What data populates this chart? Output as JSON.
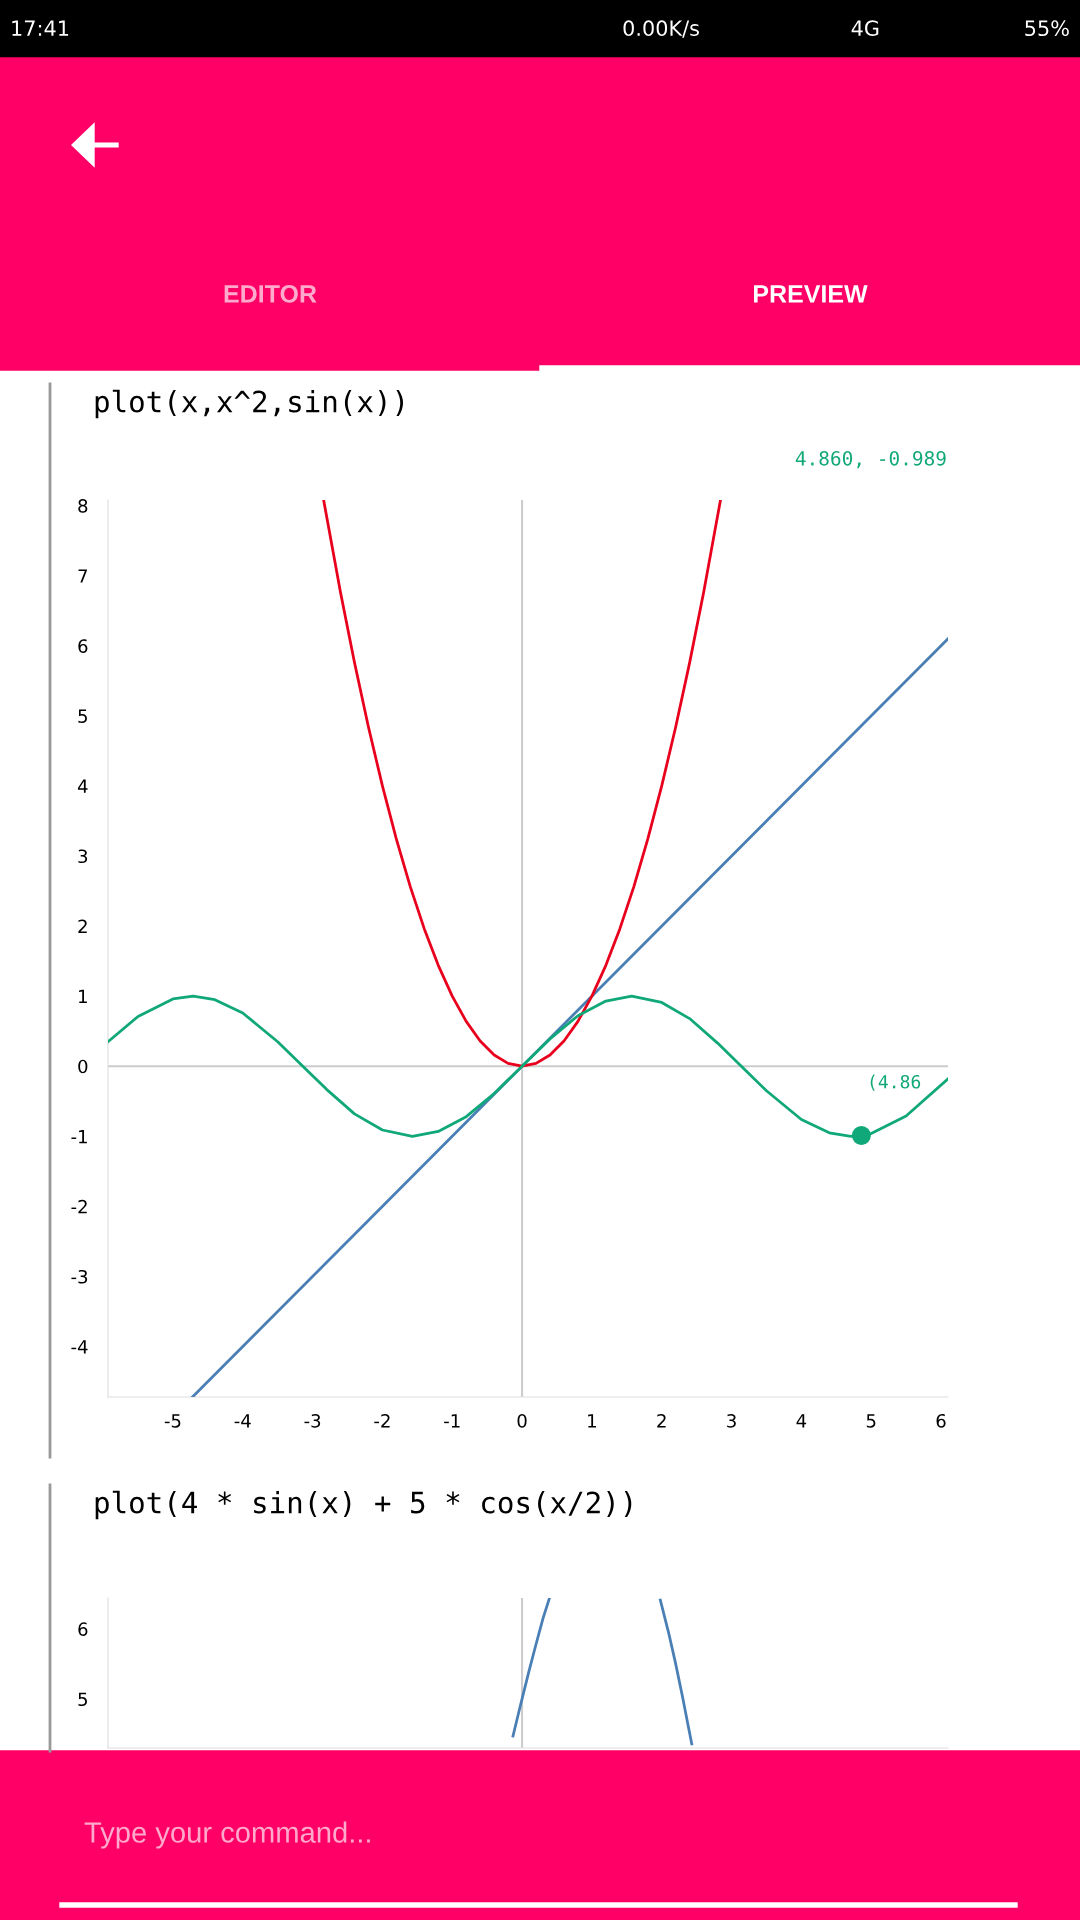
{
  "chart_data": [
    {
      "type": "line",
      "title": "plot(x,x^2,sin(x))",
      "xlim": [
        -5.93,
        6.1
      ],
      "ylim": [
        -4.72,
        8.08
      ],
      "xticks": [
        -5,
        -4,
        -3,
        -2,
        -1,
        0,
        1,
        2,
        3,
        4,
        5,
        6
      ],
      "yticks": [
        -4,
        -3,
        -2,
        -1,
        0,
        1,
        2,
        3,
        4,
        5,
        6,
        7,
        8
      ],
      "grid": false,
      "ref_lines": [
        {
          "axis": "x",
          "value": 0,
          "color": "#cccccc"
        },
        {
          "axis": "y",
          "value": 0,
          "color": "#cccccc"
        }
      ],
      "annotations": [
        "4.860, -0.989",
        {
          "text": "(4.86",
          "x": 4.86,
          "y": -0.989
        }
      ],
      "series": [
        {
          "color": "#4a7fb5",
          "x": [
            -4.72,
            6.1
          ],
          "values": [
            -4.72,
            6.1
          ]
        },
        {
          "color": "#e8001c",
          "x": [
            -2.84,
            -2.6,
            -2.4,
            -2.2,
            -2.0,
            -1.8,
            -1.6,
            -1.4,
            -1.2,
            -1.0,
            -0.8,
            -0.6,
            -0.4,
            -0.2,
            0,
            0.2,
            0.4,
            0.6,
            0.8,
            1.0,
            1.2,
            1.4,
            1.6,
            1.8,
            2.0,
            2.2,
            2.4,
            2.6,
            2.84
          ],
          "values": [
            8.07,
            6.76,
            5.76,
            4.84,
            4.0,
            3.24,
            2.56,
            1.96,
            1.44,
            1.0,
            0.64,
            0.36,
            0.16,
            0.04,
            0,
            0.04,
            0.16,
            0.36,
            0.64,
            1.0,
            1.44,
            1.96,
            2.56,
            3.24,
            4.0,
            4.84,
            5.76,
            6.76,
            8.07
          ]
        },
        {
          "color": "#10a878",
          "x": [
            -5.93,
            -5.5,
            -5.0,
            -4.71,
            -4.4,
            -4.0,
            -3.5,
            -3.14,
            -2.8,
            -2.4,
            -2.0,
            -1.57,
            -1.2,
            -0.8,
            -0.4,
            0,
            0.4,
            0.8,
            1.2,
            1.57,
            2.0,
            2.4,
            2.8,
            3.14,
            3.5,
            4.0,
            4.4,
            4.71,
            5.0,
            5.5,
            6.1
          ],
          "values": [
            0.35,
            0.71,
            0.96,
            1.0,
            0.95,
            0.76,
            0.35,
            0,
            -0.33,
            -0.68,
            -0.91,
            -1.0,
            -0.93,
            -0.72,
            -0.39,
            0,
            0.39,
            0.72,
            0.93,
            1.0,
            0.91,
            0.68,
            0.33,
            0,
            -0.35,
            -0.76,
            -0.95,
            -1.0,
            -0.96,
            -0.71,
            -0.18
          ]
        },
        {
          "type": "scatter",
          "marker": "circle",
          "color": "#10a878",
          "x": [
            4.86
          ],
          "values": [
            -0.989
          ]
        }
      ]
    },
    {
      "type": "line",
      "title": "plot(4 * sin(x) + 5 * cos(x/2))",
      "xlim": [
        -5.93,
        6.1
      ],
      "ylim": [
        4.3,
        6.44
      ],
      "yticks": [
        5,
        6
      ],
      "tick_labels": "y",
      "grid": false,
      "ref_lines": [
        {
          "axis": "x",
          "value": 0,
          "color": "#cccccc"
        }
      ],
      "series": [
        {
          "color": "#4a7fb5",
          "x": [
            -0.13,
            -0.05,
            0,
            0.1,
            0.2,
            0.3,
            0.39,
            1.2,
            1.98,
            2.1,
            2.2,
            2.3,
            2.4,
            2.43
          ],
          "values": [
            4.47,
            4.8,
            5.0,
            5.4,
            5.78,
            6.15,
            6.43,
            null,
            6.41,
            5.94,
            5.5,
            5.02,
            4.51,
            4.36
          ]
        }
      ]
    },
    {
      "type": "other",
      "annotations": [
        "17:41",
        "0.00K/s",
        "4G",
        "55%",
        "EDITOR",
        "PREVIEW",
        "Type your command..."
      ]
    }
  ]
}
